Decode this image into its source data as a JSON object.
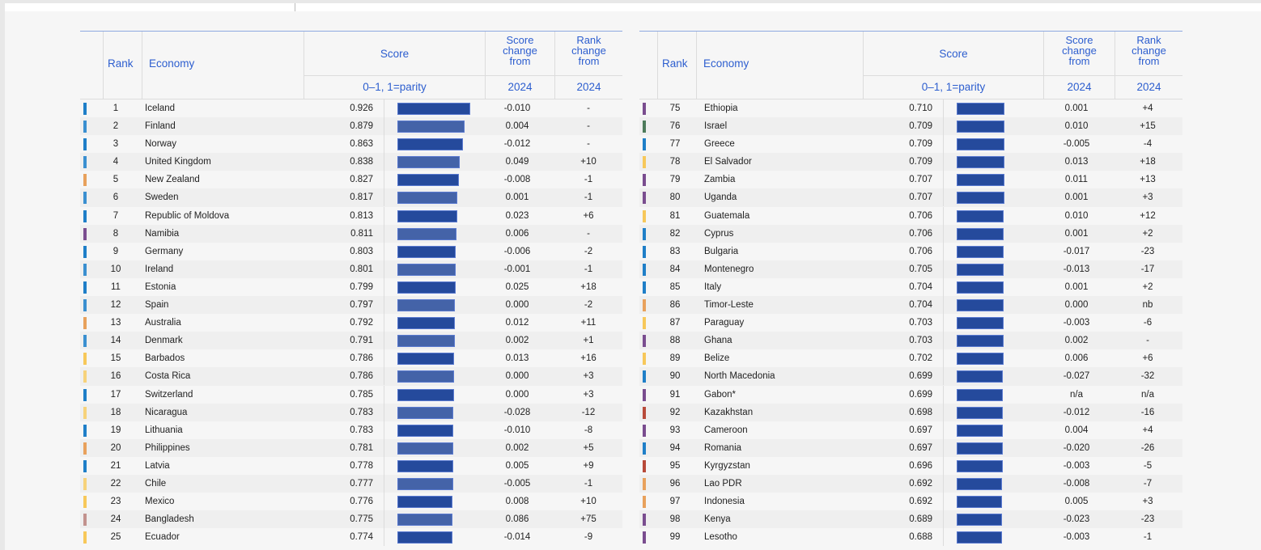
{
  "header": {
    "rank": "Rank",
    "economy": "Economy",
    "score": "Score",
    "score_sub": "0–1, 1=parity",
    "score_change": [
      "Score",
      "change",
      "from"
    ],
    "score_change_sub": "2024",
    "rank_change": [
      "Rank",
      "change",
      "from"
    ],
    "rank_change_sub": "2024"
  },
  "colors": {
    "header_text": "#2d5ecf",
    "bar_dark": "#254a9c",
    "bar_light": "#4463a8",
    "region_europe": "#1f7fc8",
    "region_europe_light": "#3a8fd0",
    "region_east_asia_pacific": "#e8a15c",
    "region_sub_saharan_africa": "#7a4d8f",
    "region_latin_america": "#f7c85a",
    "region_mena": "#4c7a5a",
    "region_central_asia": "#b84a3a",
    "region_south_asia": "#c2928e"
  },
  "left_table": [
    {
      "rank": "1",
      "economy": "Iceland",
      "score": "0.926",
      "score_change": "-0.010",
      "rank_change": "-",
      "region": "#1f7fc8"
    },
    {
      "rank": "2",
      "economy": "Finland",
      "score": "0.879",
      "score_change": "0.004",
      "rank_change": "-",
      "region": "#3a8fd0"
    },
    {
      "rank": "3",
      "economy": "Norway",
      "score": "0.863",
      "score_change": "-0.012",
      "rank_change": "-",
      "region": "#1f7fc8"
    },
    {
      "rank": "4",
      "economy": "United Kingdom",
      "score": "0.838",
      "score_change": "0.049",
      "rank_change": "+10",
      "region": "#3a8fd0"
    },
    {
      "rank": "5",
      "economy": "New Zealand",
      "score": "0.827",
      "score_change": "-0.008",
      "rank_change": "-1",
      "region": "#e8a15c"
    },
    {
      "rank": "6",
      "economy": "Sweden",
      "score": "0.817",
      "score_change": "0.001",
      "rank_change": "-1",
      "region": "#3a8fd0"
    },
    {
      "rank": "7",
      "economy": "Republic of Moldova",
      "score": "0.813",
      "score_change": "0.023",
      "rank_change": "+6",
      "region": "#1f7fc8"
    },
    {
      "rank": "8",
      "economy": "Namibia",
      "score": "0.811",
      "score_change": "0.006",
      "rank_change": "-",
      "region": "#7a4d8f"
    },
    {
      "rank": "9",
      "economy": "Germany",
      "score": "0.803",
      "score_change": "-0.006",
      "rank_change": "-2",
      "region": "#1f7fc8"
    },
    {
      "rank": "10",
      "economy": "Ireland",
      "score": "0.801",
      "score_change": "-0.001",
      "rank_change": "-1",
      "region": "#3a8fd0"
    },
    {
      "rank": "11",
      "economy": "Estonia",
      "score": "0.799",
      "score_change": "0.025",
      "rank_change": "+18",
      "region": "#1f7fc8"
    },
    {
      "rank": "12",
      "economy": "Spain",
      "score": "0.797",
      "score_change": "0.000",
      "rank_change": "-2",
      "region": "#3a8fd0"
    },
    {
      "rank": "13",
      "economy": "Australia",
      "score": "0.792",
      "score_change": "0.012",
      "rank_change": "+11",
      "region": "#e8a15c"
    },
    {
      "rank": "14",
      "economy": "Denmark",
      "score": "0.791",
      "score_change": "0.002",
      "rank_change": "+1",
      "region": "#3a8fd0"
    },
    {
      "rank": "15",
      "economy": "Barbados",
      "score": "0.786",
      "score_change": "0.013",
      "rank_change": "+16",
      "region": "#f7c85a"
    },
    {
      "rank": "16",
      "economy": "Costa Rica",
      "score": "0.786",
      "score_change": "0.000",
      "rank_change": "+3",
      "region": "#f7d27a"
    },
    {
      "rank": "17",
      "economy": "Switzerland",
      "score": "0.785",
      "score_change": "0.000",
      "rank_change": "+3",
      "region": "#1f7fc8"
    },
    {
      "rank": "18",
      "economy": "Nicaragua",
      "score": "0.783",
      "score_change": "-0.028",
      "rank_change": "-12",
      "region": "#f7d27a"
    },
    {
      "rank": "19",
      "economy": "Lithuania",
      "score": "0.783",
      "score_change": "-0.010",
      "rank_change": "-8",
      "region": "#1f7fc8"
    },
    {
      "rank": "20",
      "economy": "Philippines",
      "score": "0.781",
      "score_change": "0.002",
      "rank_change": "+5",
      "region": "#e8a15c"
    },
    {
      "rank": "21",
      "economy": "Latvia",
      "score": "0.778",
      "score_change": "0.005",
      "rank_change": "+9",
      "region": "#1f7fc8"
    },
    {
      "rank": "22",
      "economy": "Chile",
      "score": "0.777",
      "score_change": "-0.005",
      "rank_change": "-1",
      "region": "#f7d27a"
    },
    {
      "rank": "23",
      "economy": "Mexico",
      "score": "0.776",
      "score_change": "0.008",
      "rank_change": "+10",
      "region": "#f7c85a"
    },
    {
      "rank": "24",
      "economy": "Bangladesh",
      "score": "0.775",
      "score_change": "0.086",
      "rank_change": "+75",
      "region": "#c2928e"
    },
    {
      "rank": "25",
      "economy": "Ecuador",
      "score": "0.774",
      "score_change": "-0.014",
      "rank_change": "-9",
      "region": "#f7c85a"
    }
  ],
  "right_table": [
    {
      "rank": "75",
      "economy": "Ethiopia",
      "score": "0.710",
      "score_change": "0.001",
      "rank_change": "+4",
      "region": "#7a4d8f"
    },
    {
      "rank": "76",
      "economy": "Israel",
      "score": "0.709",
      "score_change": "0.010",
      "rank_change": "+15",
      "region": "#4c7a5a"
    },
    {
      "rank": "77",
      "economy": "Greece",
      "score": "0.709",
      "score_change": "-0.005",
      "rank_change": "-4",
      "region": "#1f7fc8"
    },
    {
      "rank": "78",
      "economy": "El Salvador",
      "score": "0.709",
      "score_change": "0.013",
      "rank_change": "+18",
      "region": "#f7c85a"
    },
    {
      "rank": "79",
      "economy": "Zambia",
      "score": "0.707",
      "score_change": "0.011",
      "rank_change": "+13",
      "region": "#7a4d8f"
    },
    {
      "rank": "80",
      "economy": "Uganda",
      "score": "0.707",
      "score_change": "0.001",
      "rank_change": "+3",
      "region": "#7a4d8f"
    },
    {
      "rank": "81",
      "economy": "Guatemala",
      "score": "0.706",
      "score_change": "0.010",
      "rank_change": "+12",
      "region": "#f7c85a"
    },
    {
      "rank": "82",
      "economy": "Cyprus",
      "score": "0.706",
      "score_change": "0.001",
      "rank_change": "+2",
      "region": "#1f7fc8"
    },
    {
      "rank": "83",
      "economy": "Bulgaria",
      "score": "0.706",
      "score_change": "-0.017",
      "rank_change": "-23",
      "region": "#1f7fc8"
    },
    {
      "rank": "84",
      "economy": "Montenegro",
      "score": "0.705",
      "score_change": "-0.013",
      "rank_change": "-17",
      "region": "#1f7fc8"
    },
    {
      "rank": "85",
      "economy": "Italy",
      "score": "0.704",
      "score_change": "0.001",
      "rank_change": "+2",
      "region": "#1f7fc8"
    },
    {
      "rank": "86",
      "economy": "Timor-Leste",
      "score": "0.704",
      "score_change": "0.000",
      "rank_change": "nb",
      "region": "#e8a15c"
    },
    {
      "rank": "87",
      "economy": "Paraguay",
      "score": "0.703",
      "score_change": "-0.003",
      "rank_change": "-6",
      "region": "#f7c85a"
    },
    {
      "rank": "88",
      "economy": "Ghana",
      "score": "0.703",
      "score_change": "0.002",
      "rank_change": "-",
      "region": "#7a4d8f"
    },
    {
      "rank": "89",
      "economy": "Belize",
      "score": "0.702",
      "score_change": "0.006",
      "rank_change": "+6",
      "region": "#f7c85a"
    },
    {
      "rank": "90",
      "economy": "North Macedonia",
      "score": "0.699",
      "score_change": "-0.027",
      "rank_change": "-32",
      "region": "#1f7fc8"
    },
    {
      "rank": "91",
      "economy": "Gabon*",
      "score": "0.699",
      "score_change": "n/a",
      "rank_change": "n/a",
      "region": "#7a4d8f"
    },
    {
      "rank": "92",
      "economy": "Kazakhstan",
      "score": "0.698",
      "score_change": "-0.012",
      "rank_change": "-16",
      "region": "#b84a3a"
    },
    {
      "rank": "93",
      "economy": "Cameroon",
      "score": "0.697",
      "score_change": "0.004",
      "rank_change": "+4",
      "region": "#7a4d8f"
    },
    {
      "rank": "94",
      "economy": "Romania",
      "score": "0.697",
      "score_change": "-0.020",
      "rank_change": "-26",
      "region": "#1f7fc8"
    },
    {
      "rank": "95",
      "economy": "Kyrgyzstan",
      "score": "0.696",
      "score_change": "-0.003",
      "rank_change": "-5",
      "region": "#b84a3a"
    },
    {
      "rank": "96",
      "economy": "Lao PDR",
      "score": "0.692",
      "score_change": "-0.008",
      "rank_change": "-7",
      "region": "#e8a15c"
    },
    {
      "rank": "97",
      "economy": "Indonesia",
      "score": "0.692",
      "score_change": "0.005",
      "rank_change": "+3",
      "region": "#e8a15c"
    },
    {
      "rank": "98",
      "economy": "Kenya",
      "score": "0.689",
      "score_change": "-0.023",
      "rank_change": "-23",
      "region": "#7a4d8f"
    },
    {
      "rank": "99",
      "economy": "Lesotho",
      "score": "0.688",
      "score_change": "-0.003",
      "rank_change": "-1",
      "region": "#7a4d8f"
    }
  ]
}
